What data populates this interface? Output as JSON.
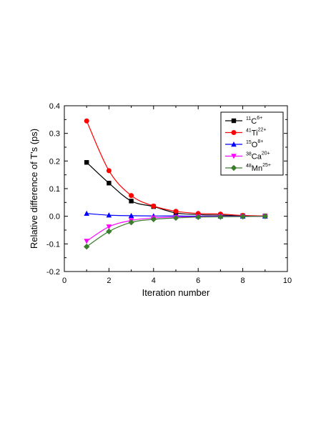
{
  "chart_data": {
    "type": "line",
    "xlabel": "Iteration number",
    "ylabel": "Relative difference of T's (ps)",
    "xlim": [
      0,
      10
    ],
    "ylim": [
      -0.2,
      0.4
    ],
    "xticks": [
      0,
      2,
      4,
      6,
      8,
      10
    ],
    "yticks": [
      -0.2,
      -0.1,
      0.0,
      0.1,
      0.2,
      0.3,
      0.4
    ],
    "xtick_labels": [
      "0",
      "2",
      "4",
      "6",
      "8",
      "10"
    ],
    "ytick_labels": [
      "-0.2",
      "-0.1",
      "0.0",
      "0.1",
      "0.2",
      "0.3",
      "0.4"
    ],
    "grid": false,
    "legend_position": "top-right",
    "x": [
      1,
      2,
      3,
      4,
      5,
      6,
      7,
      8,
      9
    ],
    "series": [
      {
        "name_parts": {
          "mass": "11",
          "element": "C",
          "charge": "6+"
        },
        "marker": "square",
        "color": "#000000",
        "values": [
          0.195,
          0.12,
          0.055,
          0.035,
          0.012,
          0.006,
          0.004,
          0.002,
          0.001
        ]
      },
      {
        "name_parts": {
          "mass": "41",
          "element": "Ti",
          "charge": "22+"
        },
        "marker": "circle",
        "color": "#ff0000",
        "values": [
          0.345,
          0.165,
          0.075,
          0.037,
          0.018,
          0.01,
          0.008,
          0.003,
          0.001
        ]
      },
      {
        "name_parts": {
          "mass": "15",
          "element": "O",
          "charge": "8+"
        },
        "marker": "triangle-up",
        "color": "#0000ff",
        "values": [
          0.01,
          0.004,
          0.002,
          0.001,
          0.001,
          0.0,
          0.0,
          0.0,
          0.0
        ]
      },
      {
        "name_parts": {
          "mass": "38",
          "element": "Ca",
          "charge": "20+"
        },
        "marker": "triangle-down",
        "color": "#ff00ff",
        "values": [
          -0.09,
          -0.038,
          -0.015,
          -0.006,
          -0.003,
          -0.002,
          -0.001,
          -0.001,
          0.0
        ]
      },
      {
        "name_parts": {
          "mass": "48",
          "element": "Mn",
          "charge": "25+"
        },
        "marker": "diamond",
        "color": "#3a7d2c",
        "values": [
          -0.11,
          -0.055,
          -0.022,
          -0.011,
          -0.006,
          -0.003,
          -0.002,
          -0.001,
          0.0
        ]
      }
    ]
  }
}
